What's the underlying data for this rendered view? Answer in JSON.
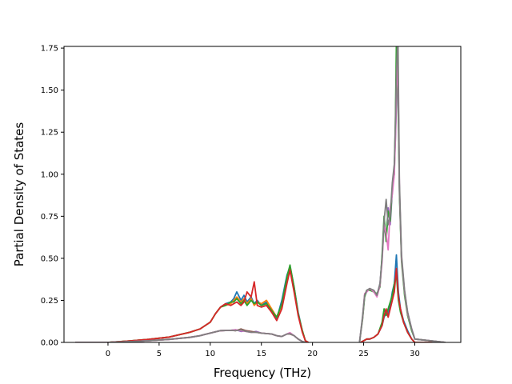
{
  "chart_data": {
    "type": "line",
    "title": "",
    "xlabel": "Frequency (THz)",
    "ylabel": "Partial Density of States",
    "xlim": [
      -4.3,
      34.5
    ],
    "ylim": [
      0,
      1.76
    ],
    "xticks": [
      0,
      5,
      10,
      15,
      20,
      25,
      30
    ],
    "xtick_labels": [
      "0",
      "5",
      "10",
      "15",
      "20",
      "25",
      "30"
    ],
    "yticks": [
      0.0,
      0.25,
      0.5,
      0.75,
      1.0,
      1.25,
      1.5,
      1.75
    ],
    "ytick_labels": [
      "0.00",
      "0.25",
      "0.50",
      "0.75",
      "1.00",
      "1.25",
      "1.50",
      "1.75"
    ],
    "grid": false,
    "legend": "none",
    "series": [
      {
        "color": "#1f77b4",
        "x": [
          -3.2,
          0,
          2,
          4,
          6,
          8,
          9,
          10,
          10.5,
          11,
          11.5,
          12,
          12.3,
          12.6,
          13,
          13.3,
          13.6,
          14,
          14.3,
          14.6,
          15,
          15.5,
          16,
          16.5,
          17,
          17.5,
          17.8,
          18.2,
          18.6,
          19,
          19.3,
          19.6
        ],
        "y": [
          0,
          0,
          0.008,
          0.018,
          0.032,
          0.06,
          0.08,
          0.12,
          0.17,
          0.21,
          0.23,
          0.24,
          0.26,
          0.3,
          0.25,
          0.28,
          0.24,
          0.27,
          0.23,
          0.25,
          0.22,
          0.24,
          0.18,
          0.14,
          0.25,
          0.4,
          0.45,
          0.33,
          0.18,
          0.07,
          0.01,
          0
        ]
      },
      {
        "color": "#ff7f0e",
        "x": [
          -3.2,
          0,
          2,
          4,
          6,
          8,
          9,
          10,
          10.5,
          11,
          11.5,
          12,
          12.3,
          12.6,
          13,
          13.3,
          13.6,
          14,
          14.3,
          14.6,
          15,
          15.5,
          16,
          16.5,
          17,
          17.5,
          17.8,
          18.2,
          18.6,
          19,
          19.3,
          19.6
        ],
        "y": [
          0,
          0,
          0.008,
          0.018,
          0.032,
          0.06,
          0.08,
          0.12,
          0.17,
          0.21,
          0.22,
          0.23,
          0.25,
          0.27,
          0.24,
          0.26,
          0.23,
          0.26,
          0.22,
          0.24,
          0.23,
          0.25,
          0.2,
          0.15,
          0.22,
          0.38,
          0.44,
          0.32,
          0.17,
          0.07,
          0.01,
          0
        ]
      },
      {
        "color": "#2ca02c",
        "x": [
          -3.2,
          0,
          2,
          4,
          6,
          8,
          9,
          10,
          10.5,
          11,
          11.5,
          12,
          12.3,
          12.6,
          13,
          13.3,
          13.6,
          14,
          14.3,
          14.6,
          15,
          15.5,
          16,
          16.5,
          17,
          17.5,
          17.8,
          18.2,
          18.6,
          19,
          19.3,
          19.6
        ],
        "y": [
          0,
          0,
          0.008,
          0.018,
          0.032,
          0.06,
          0.08,
          0.12,
          0.17,
          0.21,
          0.22,
          0.24,
          0.24,
          0.26,
          0.23,
          0.25,
          0.22,
          0.25,
          0.23,
          0.24,
          0.22,
          0.23,
          0.19,
          0.15,
          0.23,
          0.39,
          0.46,
          0.33,
          0.17,
          0.07,
          0.01,
          0
        ]
      },
      {
        "color": "#d62728",
        "x": [
          -3.2,
          0,
          2,
          4,
          6,
          8,
          9,
          10,
          10.5,
          11,
          11.5,
          12,
          12.3,
          12.6,
          13,
          13.3,
          13.6,
          14,
          14.3,
          14.6,
          15,
          15.5,
          16,
          16.5,
          17,
          17.5,
          17.8,
          18.2,
          18.6,
          19,
          19.3,
          19.6
        ],
        "y": [
          0,
          0,
          0.008,
          0.018,
          0.032,
          0.06,
          0.08,
          0.12,
          0.17,
          0.21,
          0.23,
          0.22,
          0.23,
          0.24,
          0.22,
          0.24,
          0.3,
          0.27,
          0.36,
          0.22,
          0.21,
          0.22,
          0.18,
          0.13,
          0.2,
          0.35,
          0.43,
          0.3,
          0.16,
          0.06,
          0.01,
          0
        ]
      },
      {
        "color": "#9467bd",
        "x": [
          -3.2,
          0,
          2,
          4,
          6,
          8,
          9,
          10,
          11,
          12,
          12.5,
          13,
          13.5,
          14,
          14.5,
          15,
          16,
          16.5,
          17,
          17.5,
          17.8,
          18.2,
          18.6,
          19,
          19.3
        ],
        "y": [
          0,
          0,
          0.004,
          0.01,
          0.018,
          0.03,
          0.04,
          0.055,
          0.07,
          0.072,
          0.075,
          0.065,
          0.07,
          0.06,
          0.065,
          0.055,
          0.05,
          0.04,
          0.035,
          0.05,
          0.055,
          0.04,
          0.02,
          0.005,
          0
        ]
      },
      {
        "color": "#8c564b",
        "x": [
          -3.2,
          0,
          2,
          4,
          6,
          8,
          9,
          10,
          11,
          12,
          12.5,
          13,
          13.5,
          14,
          14.5,
          15,
          16,
          16.5,
          17,
          17.5,
          17.8,
          18.2,
          18.6,
          19,
          19.3
        ],
        "y": [
          0,
          0,
          0.004,
          0.01,
          0.018,
          0.03,
          0.04,
          0.055,
          0.07,
          0.072,
          0.07,
          0.08,
          0.07,
          0.065,
          0.06,
          0.055,
          0.05,
          0.04,
          0.035,
          0.05,
          0.05,
          0.04,
          0.02,
          0.005,
          0
        ]
      },
      {
        "color": "#e377c2",
        "x": [
          -3.2,
          0,
          2,
          4,
          6,
          8,
          9,
          10,
          11,
          12,
          12.5,
          13,
          13.5,
          14,
          14.5,
          15,
          16,
          16.5,
          17,
          17.5,
          17.8,
          18.2,
          18.6,
          19,
          19.3
        ],
        "y": [
          0,
          0,
          0.004,
          0.01,
          0.018,
          0.03,
          0.04,
          0.055,
          0.07,
          0.072,
          0.075,
          0.07,
          0.065,
          0.06,
          0.06,
          0.055,
          0.05,
          0.04,
          0.035,
          0.05,
          0.058,
          0.04,
          0.02,
          0.005,
          0
        ]
      },
      {
        "color": "#7f7f7f",
        "x": [
          -3.2,
          0,
          2,
          4,
          6,
          8,
          9,
          10,
          11,
          12,
          12.5,
          13,
          13.5,
          14,
          14.5,
          15,
          16,
          16.5,
          17,
          17.5,
          17.8,
          18.2,
          18.6,
          19,
          19.3
        ],
        "y": [
          0,
          0,
          0.004,
          0.01,
          0.018,
          0.03,
          0.04,
          0.055,
          0.07,
          0.072,
          0.07,
          0.075,
          0.065,
          0.06,
          0.06,
          0.055,
          0.05,
          0.04,
          0.035,
          0.05,
          0.052,
          0.04,
          0.02,
          0.005,
          0
        ]
      },
      {
        "color": "#1f77b4",
        "x": [
          24.7,
          25,
          25.3,
          25.6,
          26,
          26.4,
          26.8,
          27,
          27.2,
          27.4,
          27.6,
          27.8,
          28,
          28.2,
          28.4,
          28.6,
          28.9,
          29.3,
          29.7,
          30,
          33
        ],
        "y": [
          0,
          0.01,
          0.02,
          0.02,
          0.03,
          0.05,
          0.1,
          0.15,
          0.18,
          0.17,
          0.22,
          0.3,
          0.35,
          0.52,
          0.3,
          0.2,
          0.13,
          0.07,
          0.02,
          0,
          0
        ]
      },
      {
        "color": "#2ca02c",
        "x": [
          24.7,
          25,
          25.3,
          25.6,
          26,
          26.4,
          26.8,
          27,
          27.2,
          27.4,
          27.6,
          27.8,
          28,
          28.2,
          28.4,
          28.6,
          28.9,
          29.3,
          29.7,
          30,
          33
        ],
        "y": [
          0,
          0.01,
          0.02,
          0.02,
          0.03,
          0.05,
          0.12,
          0.2,
          0.16,
          0.2,
          0.24,
          0.28,
          0.35,
          0.4,
          0.25,
          0.18,
          0.12,
          0.06,
          0.02,
          0,
          0
        ]
      },
      {
        "color": "#d62728",
        "x": [
          24.7,
          25,
          25.3,
          25.6,
          26,
          26.4,
          26.8,
          27,
          27.2,
          27.4,
          27.6,
          27.8,
          28,
          28.2,
          28.4,
          28.6,
          28.9,
          29.3,
          29.7,
          30,
          33
        ],
        "y": [
          0,
          0.01,
          0.02,
          0.02,
          0.03,
          0.05,
          0.1,
          0.16,
          0.2,
          0.15,
          0.2,
          0.25,
          0.3,
          0.44,
          0.27,
          0.2,
          0.12,
          0.06,
          0.02,
          0,
          0
        ]
      },
      {
        "color": "#9467bd",
        "x": [
          24.6,
          24.9,
          25.1,
          25.3,
          25.6,
          26,
          26.3,
          26.6,
          26.8,
          27,
          27.2,
          27.4,
          27.6,
          27.8,
          28,
          28.1,
          28.2,
          28.35,
          28.5,
          28.7,
          29,
          29.3,
          29.7,
          30,
          33
        ],
        "y": [
          0,
          0.15,
          0.28,
          0.3,
          0.32,
          0.3,
          0.28,
          0.35,
          0.5,
          0.7,
          0.62,
          0.8,
          0.7,
          0.9,
          1.05,
          1.2,
          1.4,
          1.64,
          0.9,
          0.5,
          0.3,
          0.18,
          0.08,
          0.02,
          0
        ]
      },
      {
        "color": "#2ca02c",
        "x": [
          24.6,
          24.9,
          25.1,
          25.3,
          25.6,
          26,
          26.3,
          26.6,
          26.8,
          27,
          27.2,
          27.4,
          27.6,
          27.8,
          28,
          28.1,
          28.2,
          28.35,
          28.5,
          28.7,
          29,
          29.3,
          29.7,
          30,
          33
        ],
        "y": [
          0,
          0.14,
          0.27,
          0.31,
          0.31,
          0.3,
          0.29,
          0.33,
          0.52,
          0.75,
          0.6,
          0.78,
          0.72,
          0.92,
          1.0,
          1.3,
          1.78,
          1.5,
          0.88,
          0.48,
          0.28,
          0.16,
          0.07,
          0.02,
          0
        ]
      },
      {
        "color": "#e377c2",
        "x": [
          24.6,
          24.9,
          25.1,
          25.3,
          25.6,
          26,
          26.3,
          26.6,
          26.8,
          27,
          27.2,
          27.4,
          27.6,
          27.8,
          28,
          28.1,
          28.2,
          28.35,
          28.5,
          28.7,
          29,
          29.3,
          29.7,
          30,
          33
        ],
        "y": [
          0,
          0.15,
          0.29,
          0.3,
          0.32,
          0.3,
          0.27,
          0.34,
          0.48,
          0.7,
          0.65,
          0.55,
          0.8,
          0.88,
          1.0,
          1.2,
          1.5,
          1.66,
          0.92,
          0.5,
          0.3,
          0.17,
          0.08,
          0.02,
          0
        ]
      },
      {
        "color": "#7f7f7f",
        "x": [
          24.6,
          24.9,
          25.1,
          25.3,
          25.6,
          26,
          26.3,
          26.6,
          26.8,
          27,
          27.2,
          27.4,
          27.6,
          27.8,
          28,
          28.1,
          28.2,
          28.35,
          28.5,
          28.7,
          29,
          29.3,
          29.7,
          30,
          33
        ],
        "y": [
          0,
          0.16,
          0.28,
          0.31,
          0.32,
          0.31,
          0.28,
          0.35,
          0.5,
          0.72,
          0.85,
          0.7,
          0.75,
          0.95,
          1.06,
          1.3,
          1.6,
          1.84,
          0.95,
          0.52,
          0.31,
          0.18,
          0.08,
          0.02,
          0
        ]
      }
    ]
  }
}
